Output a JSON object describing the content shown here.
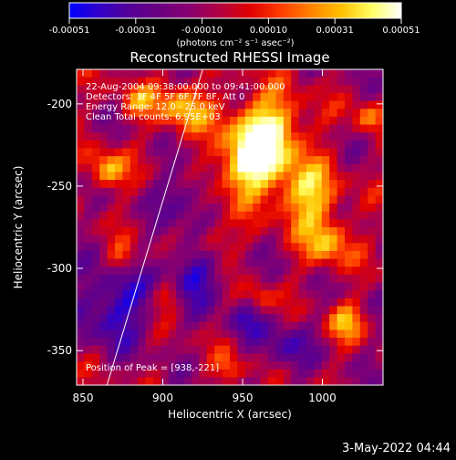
{
  "colorbar": {
    "ticks": [
      "-0.00051",
      "-0.00031",
      "-0.00010",
      "0.00010",
      "0.00031",
      "0.00051"
    ],
    "units_label": "(photons cm⁻² s⁻¹ asec⁻²)",
    "colors": [
      "#0000ff",
      "#3200c8",
      "#550096",
      "#6b0080",
      "#8a0070",
      "#b40040",
      "#e00000",
      "#ff3c00",
      "#ff8200",
      "#ffc000",
      "#ffff60",
      "#ffffff"
    ]
  },
  "footer": {
    "date_stamp": "3-May-2022 04:44"
  },
  "chart_data": {
    "type": "heatmap",
    "title": "Reconstructed RHESSI Image",
    "xlabel": "Heliocentric X (arcsec)",
    "ylabel": "Heliocentric Y (arcsec)",
    "xlim": [
      846,
      1038
    ],
    "ylim": [
      -371,
      -179
    ],
    "xticks": [
      "850",
      "900",
      "950",
      "1000"
    ],
    "yticks": [
      "-200",
      "-250",
      "-300",
      "-350"
    ],
    "xtick_values": [
      850,
      900,
      950,
      1000
    ],
    "ytick_values": [
      -200,
      -250,
      -300,
      -350
    ],
    "color_range": [
      -0.00051,
      0.00051
    ],
    "annotations": [
      "22-Aug-2004 09:38:00.000 to 09:41:00.000",
      "Detectors: 3F 4F 5F 6F 7F 8F, Att 0",
      "Energy Range: 12.0 - 25.0 keV",
      "Clean    Total counts: 6.95E+03",
      "Position of Peak = [938,-221]"
    ],
    "limb_line": {
      "x": [
        925,
        865
      ],
      "y": [
        -179,
        -371
      ]
    },
    "grid_rows": 40,
    "grid_cols": 40
  }
}
